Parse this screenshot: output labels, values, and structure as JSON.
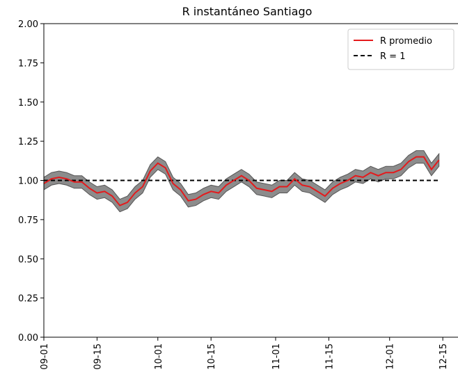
{
  "chart_data": {
    "type": "line",
    "title": "R instantáneo Santiago",
    "x": [
      "09-01",
      "09-03",
      "09-05",
      "09-07",
      "09-09",
      "09-11",
      "09-13",
      "09-15",
      "09-17",
      "09-19",
      "09-21",
      "09-23",
      "09-25",
      "09-27",
      "09-29",
      "10-01",
      "10-03",
      "10-05",
      "10-07",
      "10-09",
      "10-11",
      "10-13",
      "10-15",
      "10-17",
      "10-19",
      "10-21",
      "10-23",
      "10-25",
      "10-27",
      "10-29",
      "10-31",
      "11-02",
      "11-04",
      "11-06",
      "11-08",
      "11-10",
      "11-12",
      "11-14",
      "11-16",
      "11-18",
      "11-20",
      "11-22",
      "11-24",
      "11-26",
      "11-28",
      "11-30",
      "12-02",
      "12-04",
      "12-06",
      "12-08",
      "12-10",
      "12-12",
      "12-14"
    ],
    "series": [
      {
        "name": "R promedio",
        "color": "#e41a1c",
        "band_color": "#8c8c8c",
        "values": [
          0.98,
          1.01,
          1.02,
          1.01,
          0.99,
          0.99,
          0.95,
          0.92,
          0.93,
          0.9,
          0.84,
          0.86,
          0.92,
          0.96,
          1.06,
          1.11,
          1.08,
          0.98,
          0.94,
          0.87,
          0.88,
          0.91,
          0.93,
          0.92,
          0.97,
          1.0,
          1.03,
          1.0,
          0.95,
          0.94,
          0.93,
          0.96,
          0.96,
          1.01,
          0.97,
          0.96,
          0.93,
          0.9,
          0.95,
          0.98,
          1.0,
          1.03,
          1.02,
          1.05,
          1.03,
          1.05,
          1.05,
          1.07,
          1.12,
          1.15,
          1.15,
          1.07,
          1.13
        ],
        "lower": [
          0.94,
          0.97,
          0.98,
          0.97,
          0.95,
          0.95,
          0.91,
          0.88,
          0.89,
          0.86,
          0.8,
          0.82,
          0.88,
          0.92,
          1.02,
          1.07,
          1.04,
          0.94,
          0.9,
          0.83,
          0.84,
          0.87,
          0.89,
          0.88,
          0.93,
          0.96,
          0.99,
          0.96,
          0.91,
          0.9,
          0.89,
          0.92,
          0.92,
          0.97,
          0.93,
          0.92,
          0.89,
          0.86,
          0.91,
          0.94,
          0.96,
          0.99,
          0.98,
          1.01,
          0.99,
          1.01,
          1.01,
          1.03,
          1.08,
          1.11,
          1.11,
          1.03,
          1.09
        ],
        "upper": [
          1.02,
          1.05,
          1.06,
          1.05,
          1.03,
          1.03,
          0.99,
          0.96,
          0.97,
          0.94,
          0.88,
          0.9,
          0.96,
          1.0,
          1.1,
          1.15,
          1.12,
          1.02,
          0.98,
          0.91,
          0.92,
          0.95,
          0.97,
          0.96,
          1.01,
          1.04,
          1.07,
          1.04,
          0.99,
          0.98,
          0.97,
          1.0,
          1.0,
          1.05,
          1.01,
          1.0,
          0.97,
          0.94,
          0.99,
          1.02,
          1.04,
          1.07,
          1.06,
          1.09,
          1.07,
          1.09,
          1.09,
          1.11,
          1.16,
          1.19,
          1.19,
          1.11,
          1.17
        ]
      }
    ],
    "reference": {
      "name": "R = 1",
      "value": 1,
      "color": "#000000"
    },
    "xlim": [
      "09-01",
      "12-19"
    ],
    "xticks": [
      "09-01",
      "09-15",
      "10-01",
      "10-15",
      "11-01",
      "11-15",
      "12-01",
      "12-15"
    ],
    "ylim": [
      0,
      2
    ],
    "yticks": [
      {
        "value": 0,
        "label": "0.00"
      },
      {
        "value": 0.25,
        "label": "0.25"
      },
      {
        "value": 0.5,
        "label": "0.50"
      },
      {
        "value": 0.75,
        "label": "0.75"
      },
      {
        "value": 1,
        "label": "1.00"
      },
      {
        "value": 1.25,
        "label": "1.25"
      },
      {
        "value": 1.5,
        "label": "1.50"
      },
      {
        "value": 1.75,
        "label": "1.75"
      },
      {
        "value": 2,
        "label": "2.00"
      }
    ],
    "legend": "upper right"
  }
}
